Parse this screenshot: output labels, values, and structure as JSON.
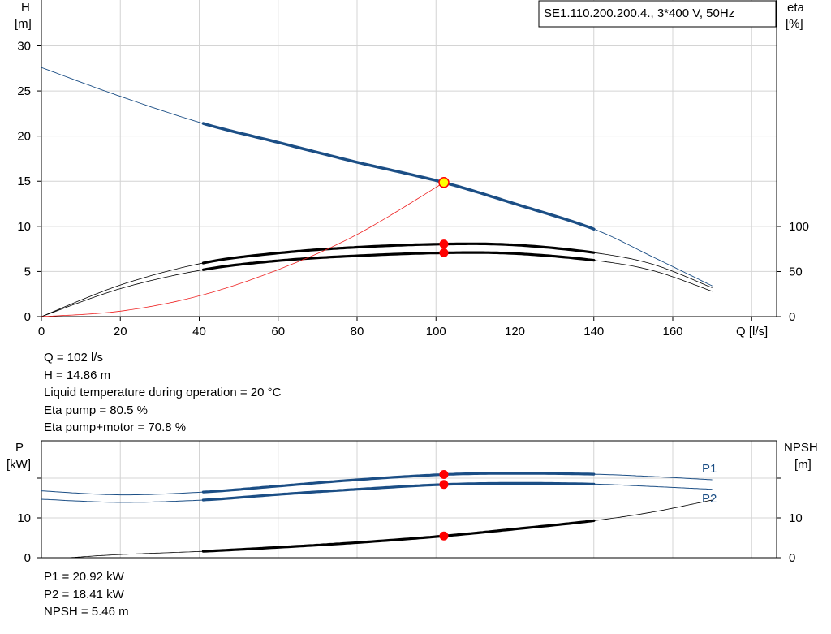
{
  "legend_box": {
    "text": "SE1.110.200.200.4., 3*400 V, 50Hz"
  },
  "top_info": [
    "Q = 102 l/s",
    "H = 14.86 m",
    "Liquid temperature during operation = 20 °C",
    "Eta pump = 80.5 %",
    "Eta pump+motor = 70.8 %"
  ],
  "bottom_info": [
    "P1 = 20.92 kW",
    "P2 = 18.41 kW",
    "NPSH = 5.46 m"
  ],
  "colors": {
    "head": "#1b4e85",
    "efficiency": "#000000",
    "system_curve": "#ee2222",
    "operating_point": "#ff0000",
    "duty_point_fill": "#ffff00",
    "grid": "#d4d4d4",
    "power": "#1b4e85",
    "npsh": "#000000"
  },
  "chart_data": [
    {
      "type": "line",
      "xlabel": "Q [l/s]",
      "ylabel_left": [
        "H",
        "[m]"
      ],
      "ylabel_right": [
        "eta",
        "[%]"
      ],
      "xlim": [
        0,
        170
      ],
      "ylim_left": [
        0,
        30
      ],
      "ylim_right": [
        0,
        100
      ],
      "x_ticks": [
        0,
        20,
        40,
        60,
        80,
        100,
        120,
        140,
        160
      ],
      "y_ticks_left": [
        0,
        5,
        10,
        15,
        20,
        25,
        30
      ],
      "y_ticks_right": [
        0,
        50,
        100
      ],
      "grid": true,
      "operating_range": [
        41,
        140
      ],
      "series": [
        {
          "axis": "left",
          "role": "head",
          "x": [
            0,
            20,
            41,
            60,
            80,
            102,
            120,
            140,
            155,
            170
          ],
          "y": [
            27.6,
            24.4,
            21.4,
            19.3,
            17.1,
            14.86,
            12.5,
            9.7,
            6.6,
            3.4
          ]
        },
        {
          "axis": "right",
          "role": "eta-pump",
          "x": [
            0,
            20,
            41,
            60,
            80,
            102,
            120,
            140,
            155,
            170
          ],
          "y": [
            0,
            35,
            59.5,
            70.5,
            77,
            80.5,
            79.5,
            71,
            58,
            32
          ]
        },
        {
          "axis": "right",
          "role": "eta-pump-motor",
          "x": [
            0,
            20,
            41,
            60,
            80,
            102,
            120,
            140,
            155,
            170
          ],
          "y": [
            0,
            31,
            52,
            62,
            67.5,
            70.8,
            70,
            62.5,
            51,
            28
          ]
        },
        {
          "axis": "left",
          "role": "system-curve",
          "x": [
            0,
            20,
            40,
            60,
            80,
            102
          ],
          "y": [
            0,
            0.6,
            2.3,
            5.2,
            9.1,
            14.86
          ]
        }
      ],
      "duty_point": {
        "x": 102,
        "y": 14.86
      },
      "eta_points": [
        {
          "x": 102,
          "y": 80.5
        },
        {
          "x": 102,
          "y": 70.8
        }
      ]
    },
    {
      "type": "line",
      "ylabel_left": [
        "P",
        "[kW]"
      ],
      "ylabel_right": [
        "NPSH",
        "[m]"
      ],
      "xlim": [
        0,
        170
      ],
      "ylim_left": [
        0,
        23
      ],
      "ylim_right": [
        0,
        23
      ],
      "y_ticks_left": [
        0,
        10
      ],
      "y_ticks_right": [
        0,
        10
      ],
      "grid": true,
      "operating_range": [
        41,
        140
      ],
      "series": [
        {
          "axis": "left",
          "name": "P1",
          "x": [
            0,
            20,
            41,
            60,
            80,
            102,
            120,
            140,
            155,
            170
          ],
          "y": [
            16.8,
            15.8,
            16.5,
            18.0,
            19.6,
            20.92,
            21.2,
            21.0,
            20.4,
            19.6
          ]
        },
        {
          "axis": "left",
          "name": "P2",
          "x": [
            0,
            20,
            41,
            60,
            80,
            102,
            120,
            140,
            155,
            170
          ],
          "y": [
            14.7,
            13.9,
            14.5,
            15.9,
            17.2,
            18.41,
            18.7,
            18.5,
            17.9,
            17.2
          ]
        },
        {
          "axis": "right",
          "role": "npsh",
          "x": [
            7,
            20,
            41,
            60,
            80,
            102,
            120,
            140,
            155,
            170
          ],
          "y": [
            0,
            0.8,
            1.6,
            2.6,
            3.8,
            5.46,
            7.2,
            9.3,
            11.5,
            14.5
          ]
        }
      ],
      "points": [
        {
          "x": 102,
          "y": 20.92
        },
        {
          "x": 102,
          "y": 18.41
        },
        {
          "x": 102,
          "y": 5.46
        }
      ]
    }
  ]
}
